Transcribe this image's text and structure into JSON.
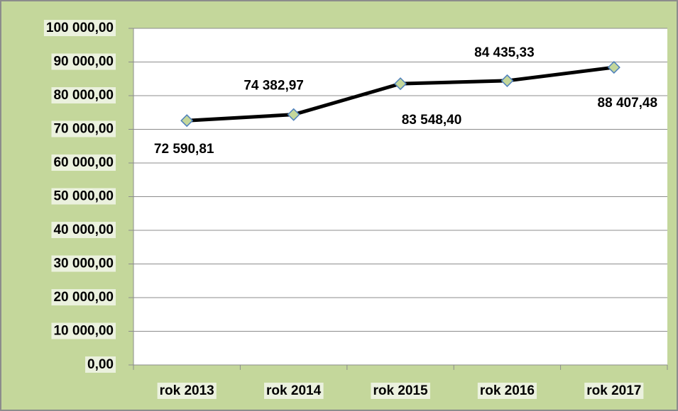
{
  "chart_data": {
    "type": "line",
    "categories": [
      "rok 2013",
      "rok 2014",
      "rok 2015",
      "rok 2016",
      "rok 2017"
    ],
    "series": [
      {
        "color": "#000000",
        "values": [
          72590.81,
          74382.97,
          83548.4,
          84435.33,
          88407.48
        ],
        "value_labels": [
          "72 590,81",
          "74 382,97",
          "83 548,40",
          "84 435,33",
          "88 407,48"
        ]
      }
    ],
    "ylim": [
      0,
      100000
    ],
    "yticks": [
      {
        "value": 0,
        "label": "0,00"
      },
      {
        "value": 10000,
        "label": "10 000,00"
      },
      {
        "value": 20000,
        "label": "20 000,00"
      },
      {
        "value": 30000,
        "label": "30 000,00"
      },
      {
        "value": 40000,
        "label": "40 000,00"
      },
      {
        "value": 50000,
        "label": "50 000,00"
      },
      {
        "value": 60000,
        "label": "60 000,00"
      },
      {
        "value": 70000,
        "label": "70 000,00"
      },
      {
        "value": 80000,
        "label": "80 000,00"
      },
      {
        "value": 90000,
        "label": "90 000,00"
      },
      {
        "value": 100000,
        "label": "100 000,00"
      }
    ],
    "grid": true
  }
}
